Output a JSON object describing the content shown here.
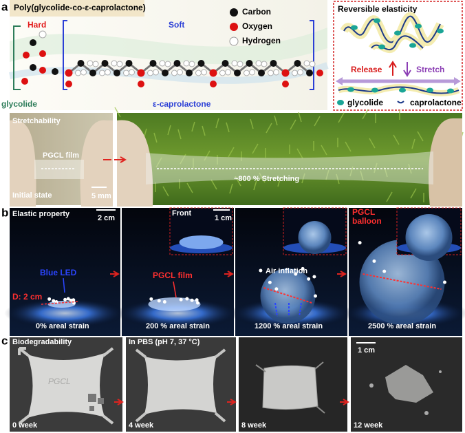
{
  "panel_a": {
    "label": "a",
    "title": "Poly(glycolide-co-ε-caprolactone)",
    "hard": "Hard",
    "soft": "Soft",
    "legend": [
      "Carbon",
      "Oxygen",
      "Hydrogen"
    ],
    "glycolide": "glycolide",
    "caprolactone": "ε-caprolactone",
    "inset": {
      "title": "Reversible elasticity",
      "release": "Release",
      "stretch": "Stretch",
      "legend": [
        "glycolide",
        "caprolactone"
      ]
    },
    "photo": {
      "stretchability": "Stretchability",
      "film": "PGCL film",
      "initial": "Initial state",
      "scale": "5 mm",
      "stretching": "~800 % Stretching"
    }
  },
  "panel_b": {
    "label": "b",
    "title": "Elastic property",
    "scale": "2 cm",
    "front": "Front",
    "inset_scale": "1 cm",
    "led": "Blue LED",
    "diameter": "D: 2 cm",
    "film": "PGCL film",
    "air": "Air inflation",
    "balloon": [
      "PGCL",
      "balloon"
    ],
    "strains": [
      "0% areal strain",
      "200 % areal strain",
      "1200 % areal strain",
      "2500 % areal strain"
    ]
  },
  "panel_c": {
    "label": "c",
    "title": "Biodegradability",
    "sample": "PGCL",
    "condition": "In PBS (pH 7, 37 °C)",
    "scale": "1 cm",
    "weeks": [
      "0 week",
      "4 week",
      "8 week",
      "12 week"
    ]
  }
}
